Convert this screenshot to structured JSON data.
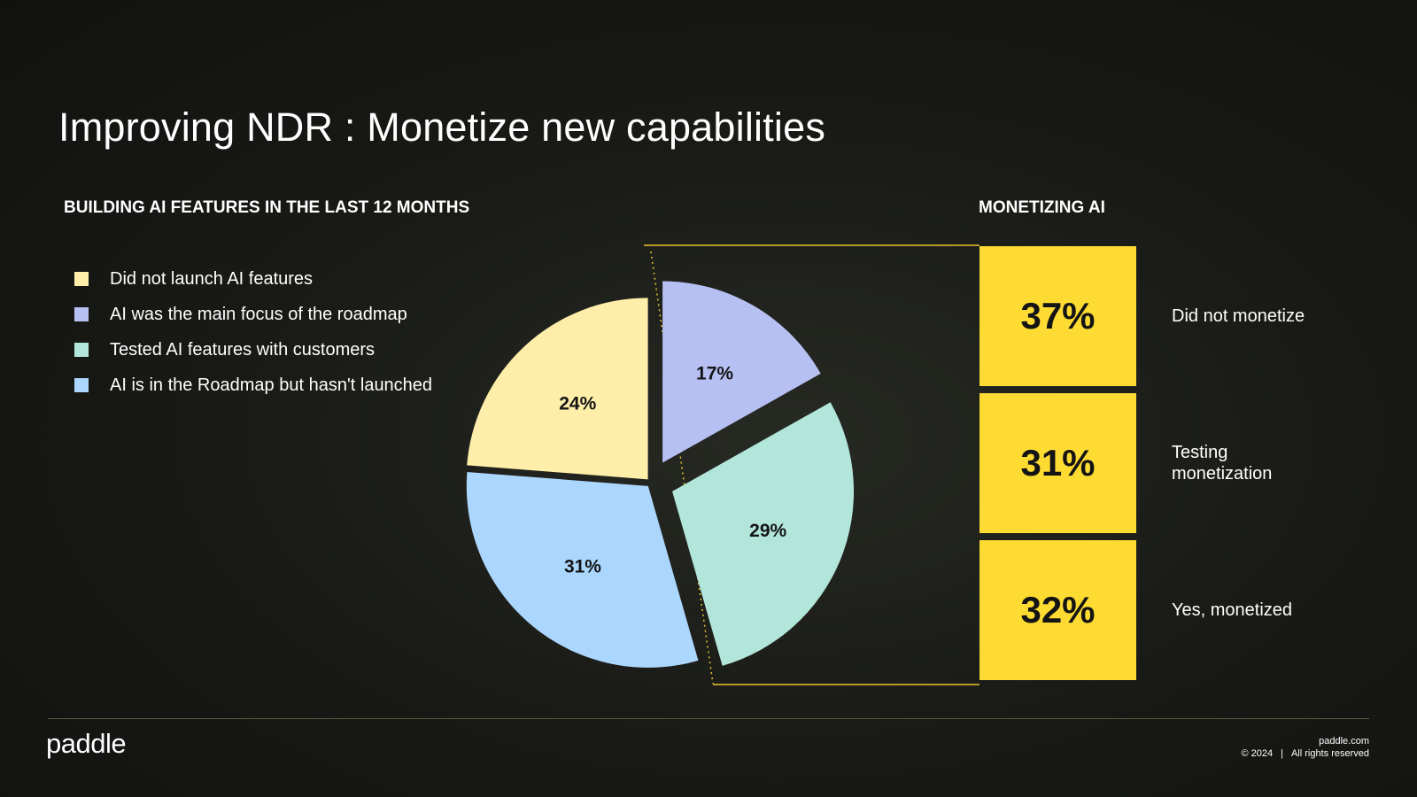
{
  "title": "Improving NDR : Monetize new capabilities",
  "left_heading": "BUILDING AI FEATURES IN THE LAST 12 MONTHS",
  "right_heading": "MONETIZING AI",
  "chart_data": [
    {
      "type": "pie",
      "categories": [
        "AI was the main focus of the roadmap",
        "Tested AI features with customers",
        "AI is in the Roadmap but hasn't launched",
        "Did not launch AI features"
      ],
      "values": [
        17,
        29,
        31,
        24
      ],
      "labels": [
        "17%",
        "29%",
        "31%",
        "24%"
      ],
      "colors": [
        "#b7c0f2",
        "#b2e6db",
        "#abd6fd",
        "#feeeaa"
      ],
      "exploded": [
        true,
        true,
        false,
        false
      ],
      "legend": [
        {
          "label": "Did not launch AI features",
          "color": "#feeeaa"
        },
        {
          "label": "AI was the main focus of the roadmap",
          "color": "#b7c0f2"
        },
        {
          "label": "Tested AI features with customers",
          "color": "#b2e6db"
        },
        {
          "label": "AI is in the Roadmap but hasn't launched",
          "color": "#abd6fd"
        }
      ],
      "legend_placement": "left"
    },
    {
      "type": "bar",
      "stacked": true,
      "categories": [
        "Did not monetize",
        "Testing monetization",
        "Yes, monetized"
      ],
      "values": [
        37,
        31,
        32
      ],
      "labels": [
        "37%",
        "31%",
        "32%"
      ],
      "color": "#fedb33"
    }
  ],
  "footer": {
    "logo": "paddle",
    "site": "paddle.com",
    "copyright": "© 2024",
    "separator": "|",
    "rights": "All rights reserved"
  },
  "colors": {
    "background": "#141512",
    "accent": "#fedb33",
    "connector": "#e7c62a"
  }
}
